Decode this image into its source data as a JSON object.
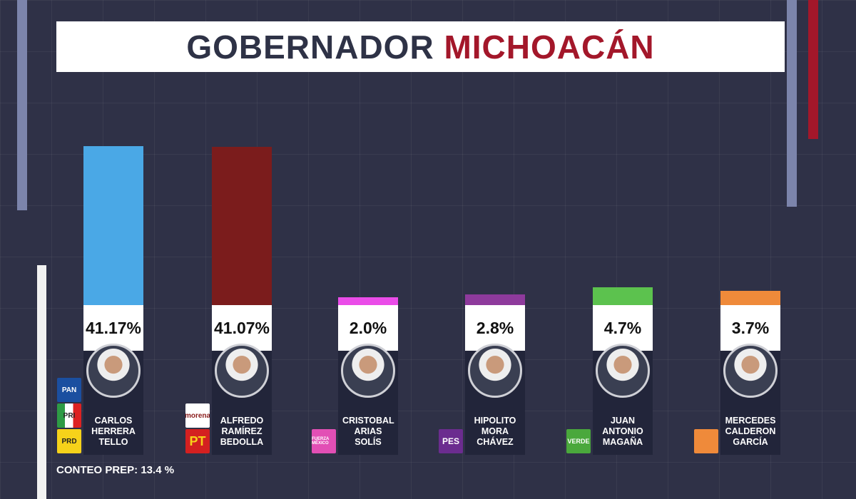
{
  "chart_data": {
    "type": "bar",
    "title": "GOBERNADOR",
    "title_highlight": "MICHOACÁN",
    "categories": [
      "CARLOS HERRERA TELLO",
      "ALFREDO RAMÍREZ BEDOLLA",
      "CRISTOBAL ARIAS SOLÍS",
      "HIPOLITO MORA CHÁVEZ",
      "JUAN ANTONIO MAGAÑA",
      "MERCEDES CALDERON GARCÍA"
    ],
    "values": [
      41.17,
      41.07,
      2.0,
      2.8,
      4.7,
      3.7
    ],
    "value_labels": [
      "41.17%",
      "41.07%",
      "2.0%",
      "2.8%",
      "4.7%",
      "3.7%"
    ],
    "colors": [
      "#4aa8e6",
      "#7b1c1c",
      "#ea4ce8",
      "#8e3a9c",
      "#5cc24e",
      "#ef8a3a"
    ],
    "parties": [
      [
        "PAN",
        "PRI",
        "PRD"
      ],
      [
        "morena",
        "PT"
      ],
      [
        "FUERZA MÉXICO"
      ],
      [
        "PES"
      ],
      [
        "VERDE"
      ],
      [
        ""
      ]
    ],
    "footnote": "CONTEO PREP: 13.4 %"
  }
}
